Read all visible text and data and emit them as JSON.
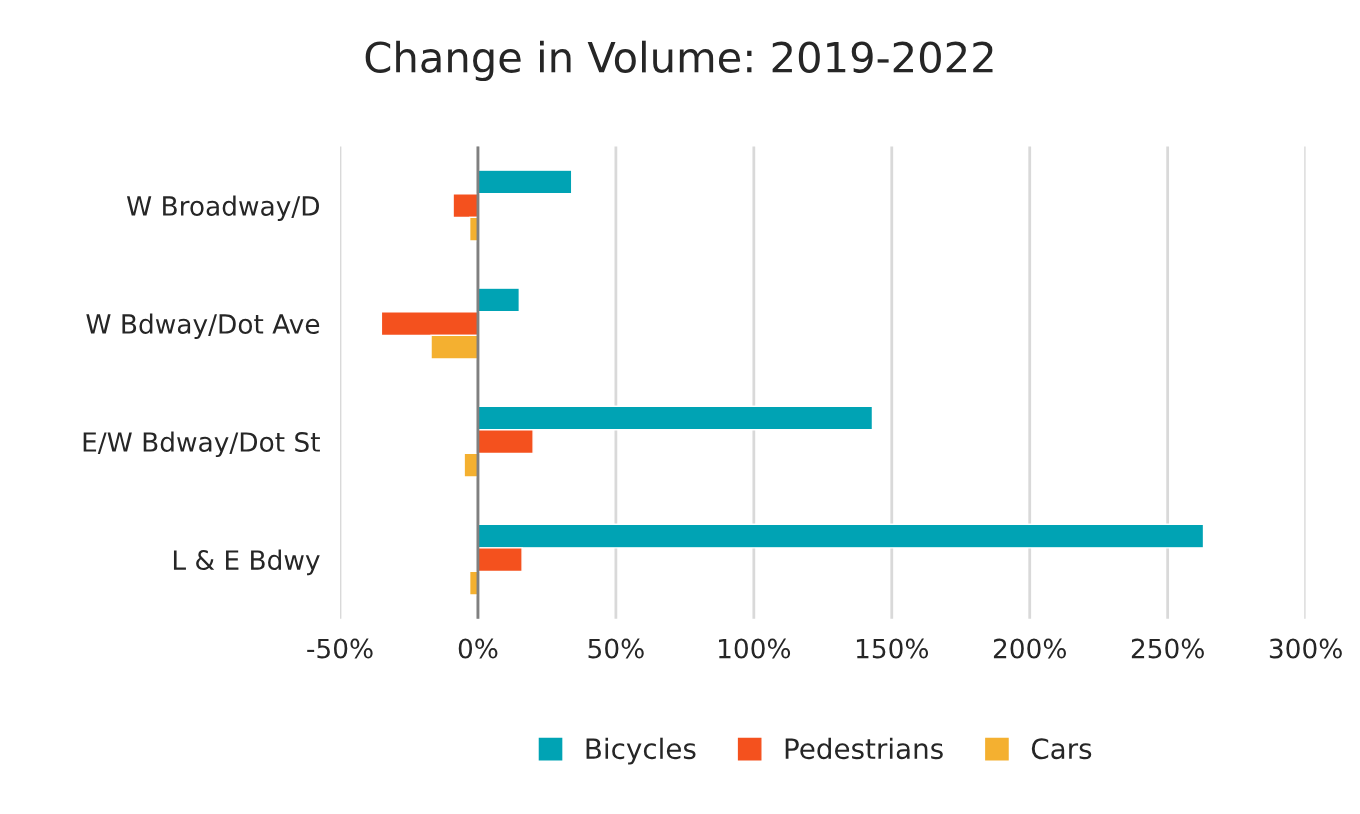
{
  "chart_data": {
    "type": "bar",
    "orientation": "horizontal",
    "title": "Change in Volume: 2019-2022",
    "categories": [
      "W Broadway/D",
      "W Bdway/Dot Ave",
      "E/W Bdway/Dot St",
      "L & E Bdwy"
    ],
    "series": [
      {
        "name": "Bicycles",
        "color": "#00a3b4",
        "values": [
          34,
          15,
          143,
          263
        ]
      },
      {
        "name": "Pedestrians",
        "color": "#f4511e",
        "values": [
          -9,
          -35,
          20,
          16
        ]
      },
      {
        "name": "Cars",
        "color": "#f4b030",
        "values": [
          -3,
          -17,
          -5,
          -3
        ]
      }
    ],
    "xlim": [
      -50,
      300
    ],
    "xticks": [
      {
        "value": -50,
        "label": "-50%"
      },
      {
        "value": 0,
        "label": "0%"
      },
      {
        "value": 50,
        "label": "50%"
      },
      {
        "value": 100,
        "label": "100%"
      },
      {
        "value": 150,
        "label": "150%"
      },
      {
        "value": 200,
        "label": "200%"
      },
      {
        "value": 250,
        "label": "250%"
      },
      {
        "value": 300,
        "label": "300%"
      }
    ],
    "ref_lines": [
      {
        "axis": "x",
        "value": 0,
        "color": "#808080"
      }
    ],
    "grid": "x",
    "legend": "bottom"
  }
}
